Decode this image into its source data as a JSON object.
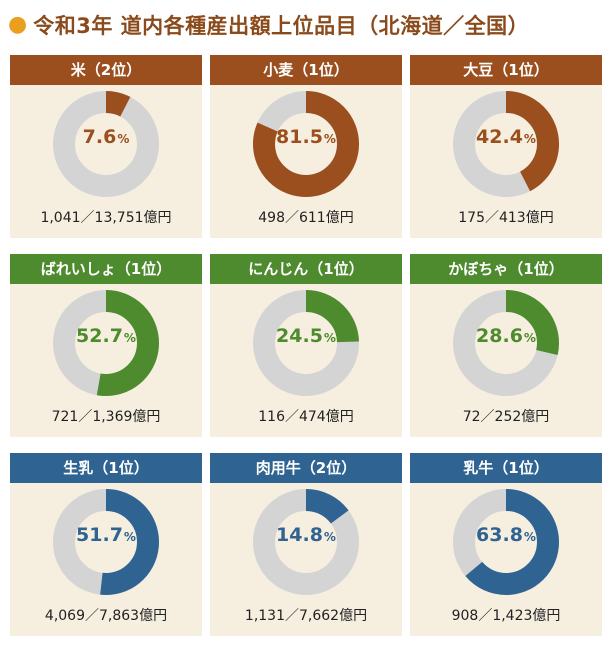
{
  "header": {
    "title": "令和3年 道内各種産出額上位品目（北海道／全国）"
  },
  "colors": {
    "grain": "#9b4e1e",
    "vegetable": "#4e8a2e",
    "dairy": "#2f6391",
    "donut_rest": "#d4d4d4",
    "card_bg": "#f6efe0",
    "title": "#8b4a1c",
    "bullet": "#e8a01e"
  },
  "chart_data": [
    {
      "type": "pie",
      "title": "米（2位）",
      "value_label": "7.6",
      "unit": "%",
      "values": [
        7.6,
        92.4
      ],
      "footer": "1,041／13,751億円",
      "color_key": "grain"
    },
    {
      "type": "pie",
      "title": "小麦（1位）",
      "value_label": "81.5",
      "unit": "%",
      "values": [
        81.5,
        18.5
      ],
      "footer": "498／611億円",
      "color_key": "grain"
    },
    {
      "type": "pie",
      "title": "大豆（1位）",
      "value_label": "42.4",
      "unit": "%",
      "values": [
        42.4,
        57.6
      ],
      "footer": "175／413億円",
      "color_key": "grain"
    },
    {
      "type": "pie",
      "title": "ばれいしょ（1位）",
      "value_label": "52.7",
      "unit": "%",
      "values": [
        52.7,
        47.3
      ],
      "footer": "721／1,369億円",
      "color_key": "vegetable"
    },
    {
      "type": "pie",
      "title": "にんじん（1位）",
      "value_label": "24.5",
      "unit": "%",
      "values": [
        24.5,
        75.5
      ],
      "footer": "116／474億円",
      "color_key": "vegetable"
    },
    {
      "type": "pie",
      "title": "かぼちゃ（1位）",
      "value_label": "28.6",
      "unit": "%",
      "values": [
        28.6,
        71.4
      ],
      "footer": "72／252億円",
      "color_key": "vegetable"
    },
    {
      "type": "pie",
      "title": "生乳（1位）",
      "value_label": "51.7",
      "unit": "%",
      "values": [
        51.7,
        48.3
      ],
      "footer": "4,069／7,863億円",
      "color_key": "dairy"
    },
    {
      "type": "pie",
      "title": "肉用牛（2位）",
      "value_label": "14.8",
      "unit": "%",
      "values": [
        14.8,
        85.2
      ],
      "footer": "1,131／7,662億円",
      "color_key": "dairy"
    },
    {
      "type": "pie",
      "title": "乳牛（1位）",
      "value_label": "63.8",
      "unit": "%",
      "values": [
        63.8,
        36.2
      ],
      "footer": "908／1,423億円",
      "color_key": "dairy"
    }
  ]
}
